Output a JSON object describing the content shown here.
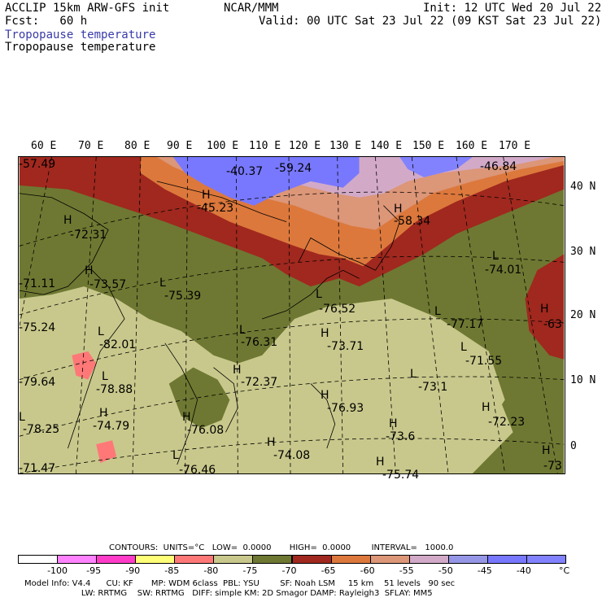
{
  "header": {
    "model": "ACCLIP 15km ARW-GFS init",
    "org": "NCAR/MMM",
    "init": "Init: 12 UTC Wed 20 Jul 22",
    "fcst": "Fcst:   60 h",
    "valid": "Valid: 00 UTC Sat 23 Jul 22 (09 KST Sat 23 Jul 22)",
    "field_blue": "Tropopause temperature",
    "field_black": "Tropopause temperature"
  },
  "map": {
    "lon_labels": [
      "60 E",
      "70 E",
      "80 E",
      "90 E",
      "100 E",
      "110 E",
      "120 E",
      "130 E",
      "140 E",
      "150 E",
      "160 E",
      "170 E"
    ],
    "lat_labels": [
      "40 N",
      "30 N",
      "20 N",
      "10 N",
      "0"
    ],
    "annotations": [
      {
        "text": "-57.49"
      },
      {
        "text": "-40.37"
      },
      {
        "text": "-59.24"
      },
      {
        "text": "-46.84"
      },
      {
        "text": "H"
      },
      {
        "text": "-45.23"
      },
      {
        "text": "H"
      },
      {
        "text": "-72.31"
      },
      {
        "text": "H"
      },
      {
        "text": "-58.34"
      },
      {
        "text": "L"
      },
      {
        "text": "-74.01"
      },
      {
        "text": "H"
      },
      {
        "text": "-73.57"
      },
      {
        "text": "-71.11"
      },
      {
        "text": "L"
      },
      {
        "text": "-75.39"
      },
      {
        "text": "L"
      },
      {
        "text": "-76.52"
      },
      {
        "text": "L"
      },
      {
        "text": "-77.17"
      },
      {
        "text": "H"
      },
      {
        "text": "-63"
      },
      {
        "text": "-75.24"
      },
      {
        "text": "L"
      },
      {
        "text": "-82.01"
      },
      {
        "text": "L"
      },
      {
        "text": "-76.31"
      },
      {
        "text": "H"
      },
      {
        "text": "-73.71"
      },
      {
        "text": "L"
      },
      {
        "text": "-71.55"
      },
      {
        "text": "-79.64"
      },
      {
        "text": "L"
      },
      {
        "text": "-78.88"
      },
      {
        "text": "H"
      },
      {
        "text": "-72.37"
      },
      {
        "text": "L"
      },
      {
        "text": "-73.1"
      },
      {
        "text": "H"
      },
      {
        "text": "-76.93"
      },
      {
        "text": "L"
      },
      {
        "text": "-78.25"
      },
      {
        "text": "H"
      },
      {
        "text": "-74.79"
      },
      {
        "text": "H"
      },
      {
        "text": "-76.08"
      },
      {
        "text": "H"
      },
      {
        "text": "-73.6"
      },
      {
        "text": "H"
      },
      {
        "text": "-72.23"
      },
      {
        "text": "H"
      },
      {
        "text": "-74.08"
      },
      {
        "text": "-71.47"
      },
      {
        "text": "L"
      },
      {
        "text": "-76.46"
      },
      {
        "text": "H"
      },
      {
        "text": "-75.74"
      },
      {
        "text": "H"
      },
      {
        "text": "-73"
      }
    ]
  },
  "footer": {
    "contours_line": "CONTOURS:  UNITS=°C   LOW=  0.0000       HIGH=  0.0000        INTERVAL=   1000.0",
    "colorbar_colors": [
      "#ffffff",
      "#ff82ff",
      "#ff3cc8",
      "#ffff78",
      "#ff7878",
      "#c8c88c",
      "#6e7832",
      "#a0281e",
      "#dc783c",
      "#dc9678",
      "#d2aac8",
      "#9696e6",
      "#7878ff",
      "#8282ff"
    ],
    "colorbar_labels": [
      "-100",
      "-95",
      "-90",
      "-85",
      "-80",
      "-75",
      "-70",
      "-65",
      "-60",
      "-55",
      "-50",
      "-45",
      "-40",
      "°C"
    ],
    "model_info_1": "Model Info: V4.4      CU: KF       MP: WDM 6class  PBL: YSU        SF: Noah LSM     15 km    51 levels   90 sec",
    "model_info_2": "                      LW: RRTMG    SW: RRTMG   DIFF: simple KM: 2D Smagor DAMP: Rayleigh3  SFLAY: MM5"
  }
}
